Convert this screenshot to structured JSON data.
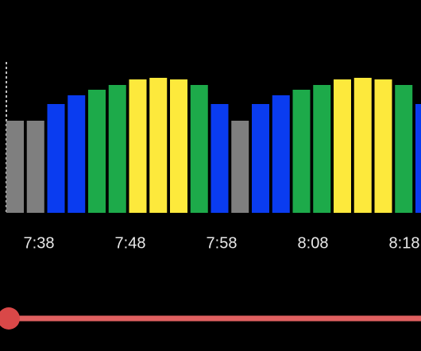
{
  "chart_data": {
    "type": "bar",
    "categories": [
      null,
      null,
      null,
      null,
      null,
      null,
      null,
      null,
      null,
      null,
      null,
      null,
      null,
      null,
      null,
      null,
      null,
      null,
      null,
      null,
      null
    ],
    "values": [
      116,
      116,
      137,
      148,
      155,
      161,
      168,
      170,
      168,
      161,
      137,
      116,
      137,
      148,
      155,
      161,
      168,
      170,
      168,
      161,
      137
    ],
    "colors": [
      "#7f7f7f",
      "#7f7f7f",
      "#0a3cf0",
      "#0a3cf0",
      "#1daa4a",
      "#1daa4a",
      "#fde93c",
      "#fde93c",
      "#fde93c",
      "#1daa4a",
      "#0a3cf0",
      "#7f7f7f",
      "#0a3cf0",
      "#0a3cf0",
      "#1daa4a",
      "#1daa4a",
      "#fde93c",
      "#fde93c",
      "#fde93c",
      "#1daa4a",
      "#0a3cf0"
    ],
    "ylim": [
      0,
      190
    ],
    "x_labels": [
      "7:38",
      "7:48",
      "7:58",
      "8:08",
      "8:18"
    ]
  }
}
